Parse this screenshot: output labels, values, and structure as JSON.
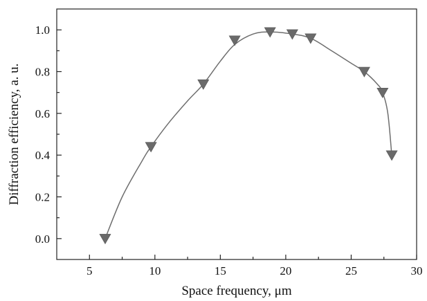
{
  "chart_data": {
    "type": "scatter",
    "title": "",
    "xlabel": "Space frequency, μm",
    "ylabel": "Diffraction efficiency, a. u.",
    "xlim": [
      2.5,
      30
    ],
    "ylim": [
      -0.1,
      1.1
    ],
    "xticks": [
      5,
      10,
      15,
      20,
      25,
      30
    ],
    "xtick_labels": [
      "5",
      "10",
      "15",
      "20",
      "25",
      "30"
    ],
    "x_minor_ticks": [
      7.5,
      12.5,
      17.5,
      22.5,
      27.5
    ],
    "yticks": [
      0.0,
      0.2,
      0.4,
      0.6,
      0.8,
      1.0
    ],
    "ytick_labels": [
      "0.0",
      "0.2",
      "0.4",
      "0.6",
      "0.8",
      "1.0"
    ],
    "y_minor_ticks": [
      0.1,
      0.3,
      0.5,
      0.7,
      0.9
    ],
    "grid": false,
    "legend": "none",
    "marker": "triangle-down",
    "marker_color": "#6a6a6a",
    "line_color": "#6e6e6e",
    "series": [
      {
        "x": [
          6.2,
          9.7,
          13.7,
          16.1,
          18.8,
          20.5,
          21.9,
          26.0,
          27.4,
          28.1
        ],
        "y": [
          0.0,
          0.44,
          0.74,
          0.95,
          0.99,
          0.98,
          0.96,
          0.8,
          0.7,
          0.4
        ]
      }
    ],
    "fit_curve": {
      "x": [
        6.2,
        7.5,
        9.0,
        9.7,
        11.0,
        12.5,
        13.7,
        15.0,
        16.1,
        17.5,
        18.8,
        20.5,
        21.9,
        23.5,
        25.0,
        26.0,
        27.0,
        27.4,
        27.8,
        28.1
      ],
      "y": [
        0.0,
        0.2,
        0.37,
        0.44,
        0.55,
        0.66,
        0.74,
        0.85,
        0.93,
        0.98,
        0.99,
        0.98,
        0.96,
        0.9,
        0.84,
        0.8,
        0.74,
        0.7,
        0.6,
        0.4
      ]
    }
  }
}
